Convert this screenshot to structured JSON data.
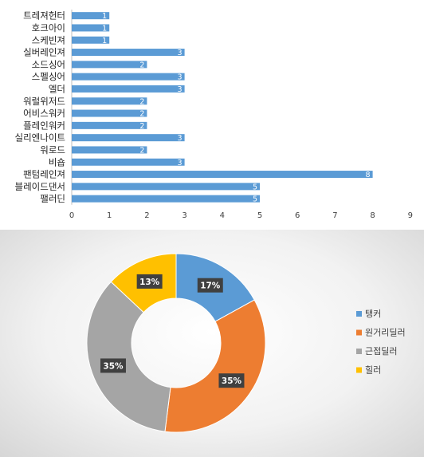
{
  "chart_data": [
    {
      "type": "bar",
      "orientation": "horizontal",
      "categories": [
        "트레져헌터",
        "호크아이",
        "스케빈져",
        "실버레인져",
        "소드싱어",
        "스펠싱어",
        "엘더",
        "워럴위저드",
        "어비스워커",
        "플레인워커",
        "실리엔나이트",
        "워로드",
        "비숍",
        "팬텀레인져",
        "블레이드댄서",
        "팰러딘"
      ],
      "values": [
        1,
        1,
        1,
        3,
        2,
        3,
        3,
        2,
        2,
        2,
        3,
        2,
        3,
        8,
        5,
        5
      ],
      "xlim": [
        0,
        9
      ],
      "xticks": [
        0,
        1,
        2,
        3,
        4,
        5,
        6,
        7,
        8,
        9
      ],
      "data_labels": true,
      "grid": false,
      "color": "#5b9bd5"
    },
    {
      "type": "pie",
      "style": "donut",
      "labels": [
        "탱커",
        "원거리딜러",
        "근접딜러",
        "힐러"
      ],
      "values": [
        17,
        35,
        35,
        13
      ],
      "value_labels": [
        "17%",
        "35%",
        "35%",
        "13%"
      ],
      "colors": [
        "#5b9bd5",
        "#ed7d31",
        "#a5a5a5",
        "#ffc000"
      ],
      "legend": "right"
    }
  ]
}
